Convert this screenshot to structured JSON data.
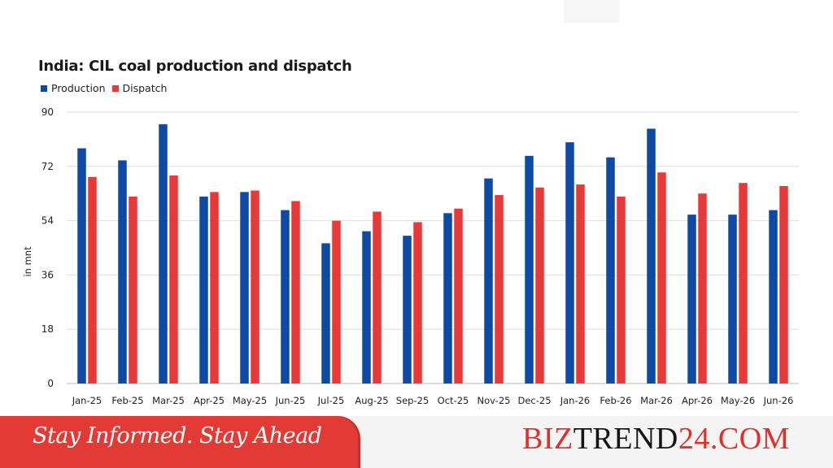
{
  "chart_data": {
    "type": "bar",
    "title": "India: CIL coal production and dispatch",
    "ylabel": "in mnt",
    "xlabel": "",
    "ylim": [
      0,
      90
    ],
    "yticks": [
      0,
      18,
      36,
      54,
      72,
      90
    ],
    "grid": true,
    "legend_position": "top-left",
    "categories": [
      "Jan-25",
      "Feb-25",
      "Mar-25",
      "Apr-25",
      "May-25",
      "Jun-25",
      "Jul-25",
      "Aug-25",
      "Sep-25",
      "Oct-25",
      "Nov-25",
      "Dec-25",
      "Jan-26",
      "Feb-26",
      "Mar-26",
      "Apr-26",
      "May-26",
      "Jun-26"
    ],
    "series": [
      {
        "name": "Production",
        "color": "#0c4aa6",
        "values": [
          78.0,
          74.0,
          86.0,
          62.0,
          63.5,
          57.5,
          46.5,
          50.5,
          49.0,
          56.5,
          68.0,
          75.5,
          80.0,
          75.0,
          84.5,
          56.0,
          56.0,
          57.5
        ]
      },
      {
        "name": "Dispatch",
        "color": "#e8393a",
        "values": [
          68.5,
          62.0,
          69.0,
          63.5,
          64.0,
          60.5,
          54.0,
          57.0,
          53.5,
          58.0,
          62.5,
          65.0,
          66.0,
          62.0,
          70.0,
          63.0,
          66.5,
          65.5
        ]
      }
    ]
  },
  "footer": {
    "tagline": "Stay Informed. Stay Ahead",
    "brand_part1": "BIZ",
    "brand_part2": "TREND",
    "brand_part3": "24.COM",
    "accent_color": "#e23a35"
  }
}
